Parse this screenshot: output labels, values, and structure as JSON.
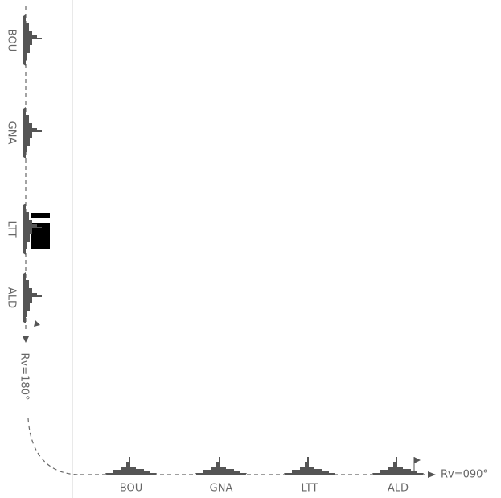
{
  "column_left": {
    "ships": [
      "BOU",
      "GNA",
      "LTT",
      "ALD"
    ]
  },
  "turn_label": "Rv=180°",
  "row_bottom": {
    "ships": [
      "BOU",
      "GNA",
      "LTT",
      "ALD"
    ]
  },
  "heading_label": "Rv=090°"
}
